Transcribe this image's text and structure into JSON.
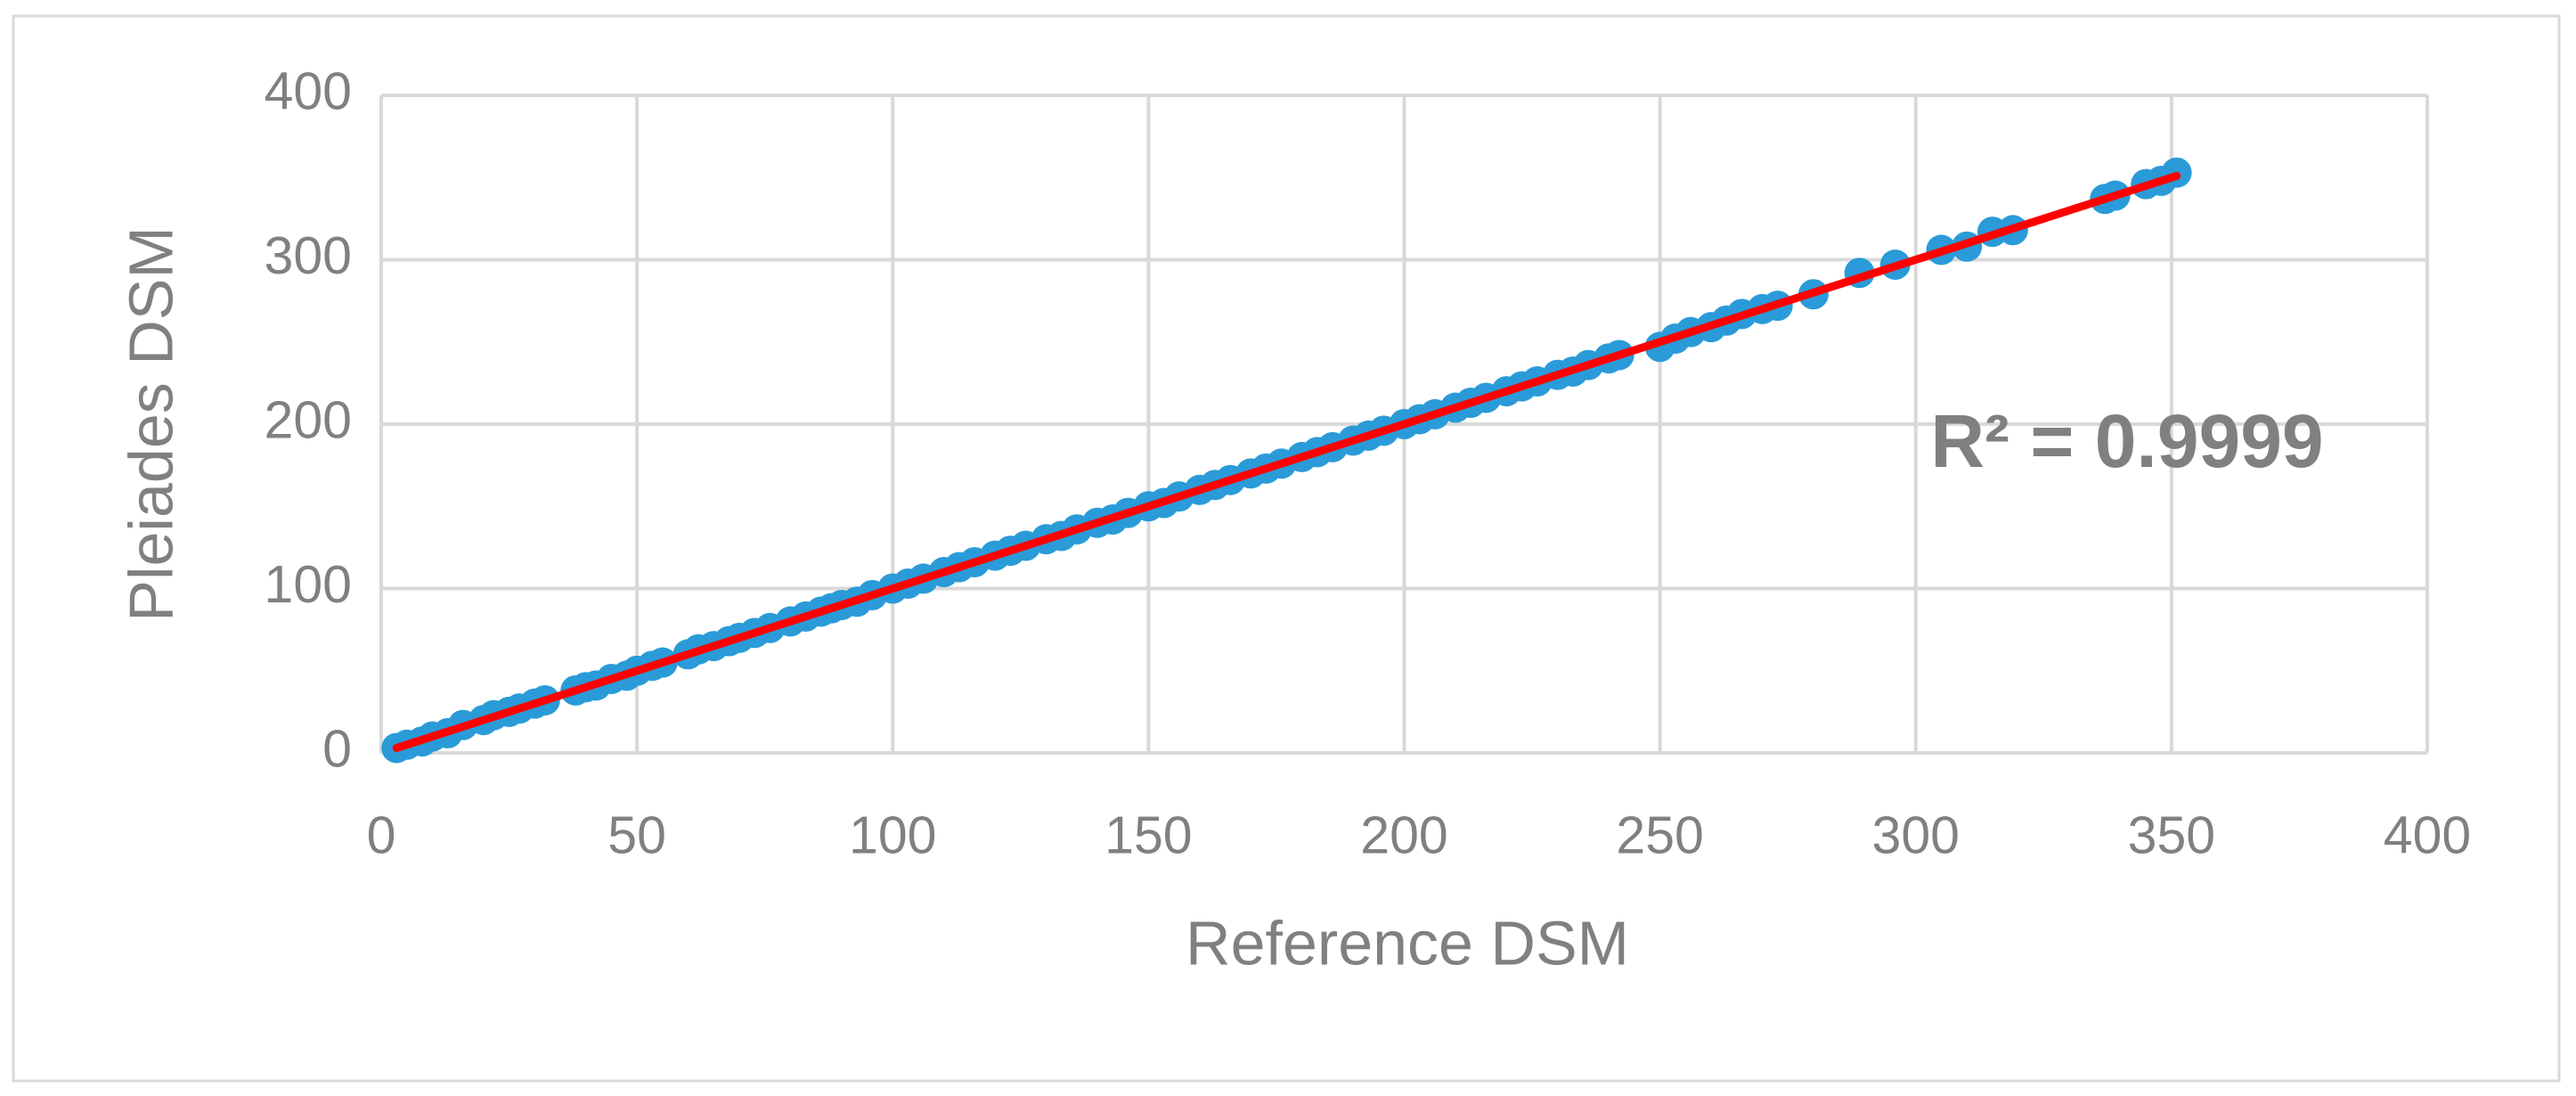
{
  "chart_data": {
    "type": "scatter",
    "x_label": "Reference DSM",
    "y_label": "Pleiades DSM",
    "annotation": "R² = 0.9999",
    "color": "#2a9bd8",
    "grid": true,
    "xlim": [
      0,
      400
    ],
    "xticks": [
      0,
      50,
      100,
      150,
      200,
      250,
      300,
      350,
      400
    ],
    "ylim": [
      0,
      400
    ],
    "yticks": [
      0,
      100,
      200,
      300,
      400
    ],
    "x": [
      3,
      5,
      8,
      10,
      13,
      16,
      20,
      22,
      25,
      27,
      30,
      32,
      38,
      40,
      42,
      45,
      48,
      50,
      53,
      55,
      60,
      62,
      65,
      68,
      70,
      73,
      76,
      80,
      83,
      86,
      88,
      90,
      93,
      96,
      100,
      103,
      106,
      110,
      113,
      116,
      120,
      123,
      126,
      130,
      133,
      136,
      140,
      143,
      146,
      150,
      153,
      156,
      160,
      163,
      166,
      170,
      173,
      176,
      180,
      183,
      186,
      190,
      193,
      196,
      200,
      203,
      206,
      210,
      213,
      216,
      220,
      223,
      226,
      230,
      233,
      236,
      240,
      242,
      250,
      253,
      256,
      260,
      263,
      266,
      270,
      273,
      280,
      289,
      296,
      305,
      310,
      315,
      319,
      337,
      339,
      345,
      348,
      351
    ],
    "y": [
      3,
      5,
      7,
      10,
      12,
      17,
      20,
      23,
      25,
      27,
      30,
      32,
      38,
      40,
      41,
      45,
      47,
      50,
      53,
      55,
      60,
      63,
      65,
      68,
      70,
      73,
      76,
      80,
      83,
      86,
      88,
      90,
      92,
      96,
      100,
      103,
      106,
      110,
      113,
      116,
      120,
      123,
      126,
      130,
      132,
      136,
      140,
      142,
      146,
      150,
      152,
      156,
      160,
      163,
      166,
      170,
      173,
      176,
      180,
      183,
      186,
      190,
      193,
      196,
      200,
      203,
      206,
      210,
      213,
      216,
      220,
      223,
      226,
      230,
      232,
      236,
      240,
      242,
      247,
      252,
      256,
      259,
      263,
      267,
      270,
      272,
      279,
      292,
      297,
      306,
      308,
      317,
      318,
      337,
      339,
      346,
      348,
      353
    ],
    "trendline": {
      "color": "#ff0000",
      "x": [
        3,
        351
      ],
      "y": [
        3,
        351
      ]
    }
  }
}
